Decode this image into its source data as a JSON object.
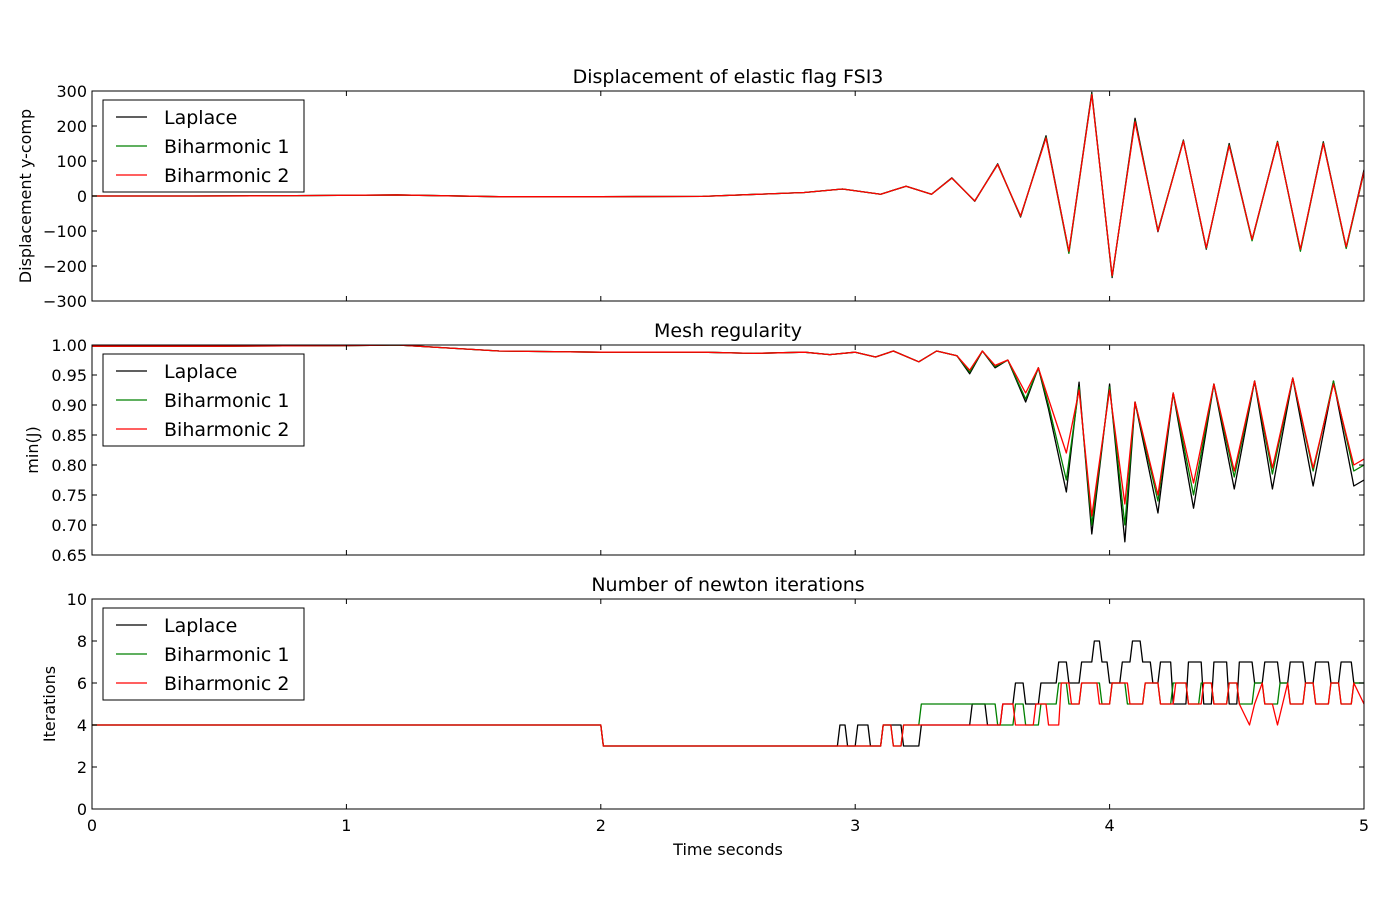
{
  "chart_data": [
    {
      "type": "line",
      "title": "Displacement of elastic flag FSI3",
      "xlabel": "",
      "ylabel": "Displacement y-comp",
      "xlim": [
        0,
        5
      ],
      "ylim": [
        -300,
        300
      ],
      "xticks": [
        "0",
        "1",
        "2",
        "3",
        "4",
        "5"
      ],
      "yticks": [
        300,
        200,
        100,
        0,
        -100,
        -200,
        -300
      ],
      "ytick_labels": [
        "300",
        "200",
        "100",
        "0",
        "−100",
        "−200",
        "−300"
      ],
      "show_xtick_labels": false,
      "legend_placement": "upper-left",
      "series": [
        {
          "name": "Laplace",
          "color": "#000000",
          "x": [
            0,
            0.4,
            0.8,
            1.2,
            1.6,
            2.0,
            2.4,
            2.8,
            2.95,
            3.1,
            3.2,
            3.3,
            3.38,
            3.47,
            3.56,
            3.65,
            3.75,
            3.84,
            3.93,
            4.01,
            4.1,
            4.19,
            4.29,
            4.38,
            4.47,
            4.56,
            4.66,
            4.75,
            4.84,
            4.93,
            5.0
          ],
          "y": [
            0,
            0,
            1,
            3,
            -2,
            -2,
            -1,
            10,
            20,
            5,
            28,
            5,
            52,
            -15,
            92,
            -60,
            172,
            -160,
            296,
            -233,
            222,
            -102,
            160,
            -152,
            150,
            -125,
            156,
            -155,
            155,
            -148,
            75
          ]
        },
        {
          "name": "Biharmonic 1",
          "color": "#008000",
          "x": [
            0,
            0.4,
            0.8,
            1.2,
            1.6,
            2.0,
            2.4,
            2.8,
            2.95,
            3.1,
            3.2,
            3.3,
            3.38,
            3.47,
            3.56,
            3.65,
            3.75,
            3.84,
            3.93,
            4.01,
            4.1,
            4.19,
            4.29,
            4.38,
            4.47,
            4.56,
            4.66,
            4.75,
            4.84,
            4.93,
            5.0
          ],
          "y": [
            0,
            0,
            1,
            3,
            -2,
            -2,
            -1,
            10,
            20,
            5,
            28,
            5,
            51,
            -14,
            90,
            -58,
            168,
            -164,
            292,
            -230,
            215,
            -98,
            158,
            -150,
            146,
            -128,
            155,
            -158,
            152,
            -150,
            68
          ]
        },
        {
          "name": "Biharmonic 2",
          "color": "#ff0000",
          "x": [
            0,
            0.4,
            0.8,
            1.2,
            1.6,
            2.0,
            2.4,
            2.8,
            2.95,
            3.1,
            3.2,
            3.3,
            3.38,
            3.47,
            3.56,
            3.65,
            3.75,
            3.84,
            3.93,
            4.01,
            4.1,
            4.19,
            4.29,
            4.38,
            4.47,
            4.56,
            4.66,
            4.75,
            4.84,
            4.93,
            5.0
          ],
          "y": [
            0,
            0,
            1,
            3,
            -2,
            -2,
            -1,
            10,
            20,
            5,
            28,
            5,
            51,
            -14,
            90,
            -57,
            166,
            -158,
            290,
            -228,
            212,
            -100,
            157,
            -148,
            144,
            -124,
            153,
            -152,
            150,
            -145,
            70
          ]
        }
      ]
    },
    {
      "type": "line",
      "title": "Mesh regularity",
      "xlabel": "",
      "ylabel": "min(J)",
      "xlim": [
        0,
        5
      ],
      "ylim": [
        0.65,
        1.0
      ],
      "xticks": [
        "0",
        "1",
        "2",
        "3",
        "4",
        "5"
      ],
      "yticks": [
        1.0,
        0.95,
        0.9,
        0.85,
        0.8,
        0.75,
        0.7,
        0.65
      ],
      "ytick_labels": [
        "1.00",
        "0.95",
        "0.90",
        "0.85",
        "0.80",
        "0.75",
        "0.70",
        "0.65"
      ],
      "show_xtick_labels": false,
      "legend_placement": "upper-left",
      "series": [
        {
          "name": "Laplace",
          "color": "#000000",
          "x": [
            0,
            0.5,
            1.0,
            1.2,
            1.4,
            1.6,
            2.0,
            2.4,
            2.6,
            2.8,
            2.9,
            3.0,
            3.08,
            3.15,
            3.25,
            3.32,
            3.4,
            3.45,
            3.5,
            3.55,
            3.6,
            3.67,
            3.72,
            3.76,
            3.83,
            3.88,
            3.93,
            4.0,
            4.06,
            4.1,
            4.19,
            4.25,
            4.33,
            4.41,
            4.49,
            4.57,
            4.64,
            4.72,
            4.8,
            4.88,
            4.96,
            5.0
          ],
          "y": [
            0.998,
            0.998,
            0.999,
            1.0,
            0.995,
            0.99,
            0.988,
            0.988,
            0.986,
            0.988,
            0.984,
            0.988,
            0.98,
            0.99,
            0.972,
            0.99,
            0.982,
            0.952,
            0.99,
            0.962,
            0.975,
            0.905,
            0.962,
            0.893,
            0.755,
            0.938,
            0.685,
            0.935,
            0.672,
            0.905,
            0.72,
            0.92,
            0.728,
            0.935,
            0.76,
            0.94,
            0.76,
            0.945,
            0.765,
            0.94,
            0.765,
            0.775
          ]
        },
        {
          "name": "Biharmonic 1",
          "color": "#008000",
          "x": [
            0,
            0.5,
            1.0,
            1.2,
            1.4,
            1.6,
            2.0,
            2.4,
            2.6,
            2.8,
            2.9,
            3.0,
            3.08,
            3.15,
            3.25,
            3.32,
            3.4,
            3.45,
            3.5,
            3.55,
            3.6,
            3.67,
            3.72,
            3.76,
            3.83,
            3.88,
            3.93,
            4.0,
            4.06,
            4.1,
            4.19,
            4.25,
            4.33,
            4.41,
            4.49,
            4.57,
            4.64,
            4.72,
            4.8,
            4.88,
            4.96,
            5.0
          ],
          "y": [
            0.998,
            0.998,
            0.999,
            1.0,
            0.995,
            0.99,
            0.988,
            0.988,
            0.986,
            0.988,
            0.984,
            0.988,
            0.98,
            0.99,
            0.972,
            0.99,
            0.982,
            0.955,
            0.99,
            0.964,
            0.975,
            0.91,
            0.962,
            0.9,
            0.775,
            0.93,
            0.7,
            0.93,
            0.7,
            0.905,
            0.74,
            0.92,
            0.75,
            0.935,
            0.78,
            0.94,
            0.785,
            0.945,
            0.79,
            0.94,
            0.79,
            0.8
          ]
        },
        {
          "name": "Biharmonic 2",
          "color": "#ff0000",
          "x": [
            0,
            0.5,
            1.0,
            1.2,
            1.4,
            1.6,
            2.0,
            2.4,
            2.6,
            2.8,
            2.9,
            3.0,
            3.08,
            3.15,
            3.25,
            3.32,
            3.4,
            3.45,
            3.5,
            3.55,
            3.6,
            3.67,
            3.72,
            3.76,
            3.83,
            3.88,
            3.93,
            4.0,
            4.06,
            4.1,
            4.19,
            4.25,
            4.33,
            4.41,
            4.49,
            4.57,
            4.64,
            4.72,
            4.8,
            4.88,
            4.96,
            5.0
          ],
          "y": [
            0.998,
            0.998,
            0.999,
            1.0,
            0.995,
            0.99,
            0.988,
            0.988,
            0.986,
            0.988,
            0.984,
            0.988,
            0.98,
            0.99,
            0.972,
            0.99,
            0.982,
            0.958,
            0.99,
            0.966,
            0.975,
            0.92,
            0.962,
            0.91,
            0.82,
            0.925,
            0.715,
            0.925,
            0.735,
            0.905,
            0.75,
            0.92,
            0.77,
            0.935,
            0.79,
            0.94,
            0.795,
            0.945,
            0.795,
            0.935,
            0.8,
            0.81
          ]
        }
      ]
    },
    {
      "type": "line",
      "title": "Number of newton iterations",
      "xlabel": "Time seconds",
      "ylabel": "Iterations",
      "xlim": [
        0,
        5
      ],
      "ylim": [
        0,
        10
      ],
      "xticks": [
        "0",
        "1",
        "2",
        "3",
        "4",
        "5"
      ],
      "yticks": [
        0,
        2,
        4,
        6,
        8,
        10
      ],
      "ytick_labels": [
        "0",
        "2",
        "4",
        "6",
        "8",
        "10"
      ],
      "show_xtick_labels": true,
      "legend_placement": "upper-left",
      "series": [
        {
          "name": "Laplace",
          "color": "#000000",
          "x": [
            0,
            2.0,
            2.01,
            2.93,
            2.94,
            2.96,
            2.97,
            3.0,
            3.01,
            3.05,
            3.06,
            3.1,
            3.11,
            3.18,
            3.19,
            3.25,
            3.26,
            3.45,
            3.46,
            3.51,
            3.52,
            3.57,
            3.58,
            3.62,
            3.63,
            3.66,
            3.67,
            3.72,
            3.73,
            3.79,
            3.8,
            3.83,
            3.84,
            3.88,
            3.89,
            3.93,
            3.94,
            3.96,
            3.97,
            3.99,
            4.0,
            4.04,
            4.05,
            4.08,
            4.09,
            4.12,
            4.13,
            4.16,
            4.17,
            4.19,
            4.2,
            4.24,
            4.25,
            4.3,
            4.31,
            4.36,
            4.37,
            4.4,
            4.41,
            4.46,
            4.47,
            4.5,
            4.51,
            4.56,
            4.57,
            4.6,
            4.61,
            4.66,
            4.67,
            4.7,
            4.71,
            4.76,
            4.77,
            4.8,
            4.81,
            4.86,
            4.87,
            4.9,
            4.91,
            4.95,
            4.96,
            5.0
          ],
          "y": [
            4,
            4,
            3,
            3,
            4,
            4,
            3,
            3,
            4,
            4,
            3,
            3,
            4,
            4,
            3,
            3,
            4,
            4,
            5,
            5,
            4,
            4,
            5,
            5,
            6,
            6,
            5,
            5,
            6,
            6,
            7,
            7,
            6,
            6,
            7,
            7,
            8,
            8,
            7,
            7,
            6,
            6,
            7,
            7,
            8,
            8,
            7,
            7,
            6,
            6,
            7,
            7,
            5,
            5,
            7,
            7,
            5,
            5,
            7,
            7,
            5,
            5,
            7,
            7,
            6,
            6,
            7,
            7,
            6,
            6,
            7,
            7,
            6,
            6,
            7,
            7,
            6,
            6,
            7,
            7,
            6,
            6
          ]
        },
        {
          "name": "Biharmonic 1",
          "color": "#008000",
          "x": [
            0,
            2.0,
            2.01,
            3.1,
            3.11,
            3.14,
            3.15,
            3.18,
            3.19,
            3.25,
            3.26,
            3.55,
            3.56,
            3.62,
            3.63,
            3.66,
            3.67,
            3.72,
            3.73,
            3.79,
            3.8,
            3.83,
            3.84,
            3.88,
            3.89,
            3.96,
            3.97,
            4.0,
            4.01,
            4.06,
            4.07,
            4.13,
            4.14,
            4.19,
            4.2,
            4.24,
            4.25,
            4.3,
            4.31,
            4.35,
            4.36,
            4.4,
            4.41,
            4.46,
            4.47,
            4.5,
            4.51,
            4.56,
            4.57,
            4.6,
            4.61,
            4.66,
            4.67,
            4.7,
            4.71,
            4.76,
            4.77,
            4.8,
            4.81,
            4.86,
            4.87,
            4.9,
            4.91,
            4.95,
            4.96,
            5.0
          ],
          "y": [
            4,
            4,
            3,
            3,
            4,
            4,
            3,
            3,
            4,
            4,
            5,
            5,
            4,
            4,
            5,
            5,
            4,
            4,
            5,
            5,
            6,
            6,
            5,
            5,
            6,
            6,
            5,
            5,
            6,
            6,
            5,
            5,
            6,
            6,
            5,
            5,
            6,
            6,
            5,
            5,
            6,
            6,
            5,
            5,
            6,
            6,
            5,
            5,
            6,
            6,
            5,
            5,
            6,
            6,
            5,
            5,
            6,
            6,
            5,
            5,
            6,
            6,
            5,
            5,
            6,
            6
          ]
        },
        {
          "name": "Biharmonic 2",
          "color": "#ff0000",
          "x": [
            0,
            2.0,
            2.01,
            3.1,
            3.11,
            3.14,
            3.15,
            3.18,
            3.19,
            3.25,
            3.26,
            3.57,
            3.58,
            3.62,
            3.63,
            3.7,
            3.71,
            3.75,
            3.76,
            3.8,
            3.81,
            3.84,
            3.85,
            3.88,
            3.89,
            3.95,
            3.96,
            4.0,
            4.01,
            4.07,
            4.08,
            4.13,
            4.14,
            4.19,
            4.2,
            4.25,
            4.26,
            4.3,
            4.31,
            4.36,
            4.37,
            4.4,
            4.41,
            4.46,
            4.47,
            4.5,
            4.51,
            4.55,
            4.57,
            4.6,
            4.61,
            4.64,
            4.66,
            4.7,
            4.71,
            4.76,
            4.77,
            4.8,
            4.81,
            4.86,
            4.87,
            4.9,
            4.91,
            4.95,
            4.96,
            5.0
          ],
          "y": [
            4,
            4,
            3,
            3,
            4,
            4,
            3,
            3,
            4,
            4,
            4,
            4,
            5,
            5,
            4,
            4,
            5,
            5,
            4,
            4,
            6,
            6,
            5,
            5,
            6,
            6,
            5,
            5,
            6,
            6,
            5,
            5,
            6,
            6,
            5,
            5,
            6,
            6,
            5,
            5,
            6,
            6,
            5,
            5,
            6,
            6,
            5,
            4,
            5,
            6,
            5,
            5,
            4,
            6,
            5,
            5,
            6,
            6,
            5,
            5,
            6,
            6,
            5,
            5,
            6,
            5
          ]
        }
      ]
    }
  ]
}
